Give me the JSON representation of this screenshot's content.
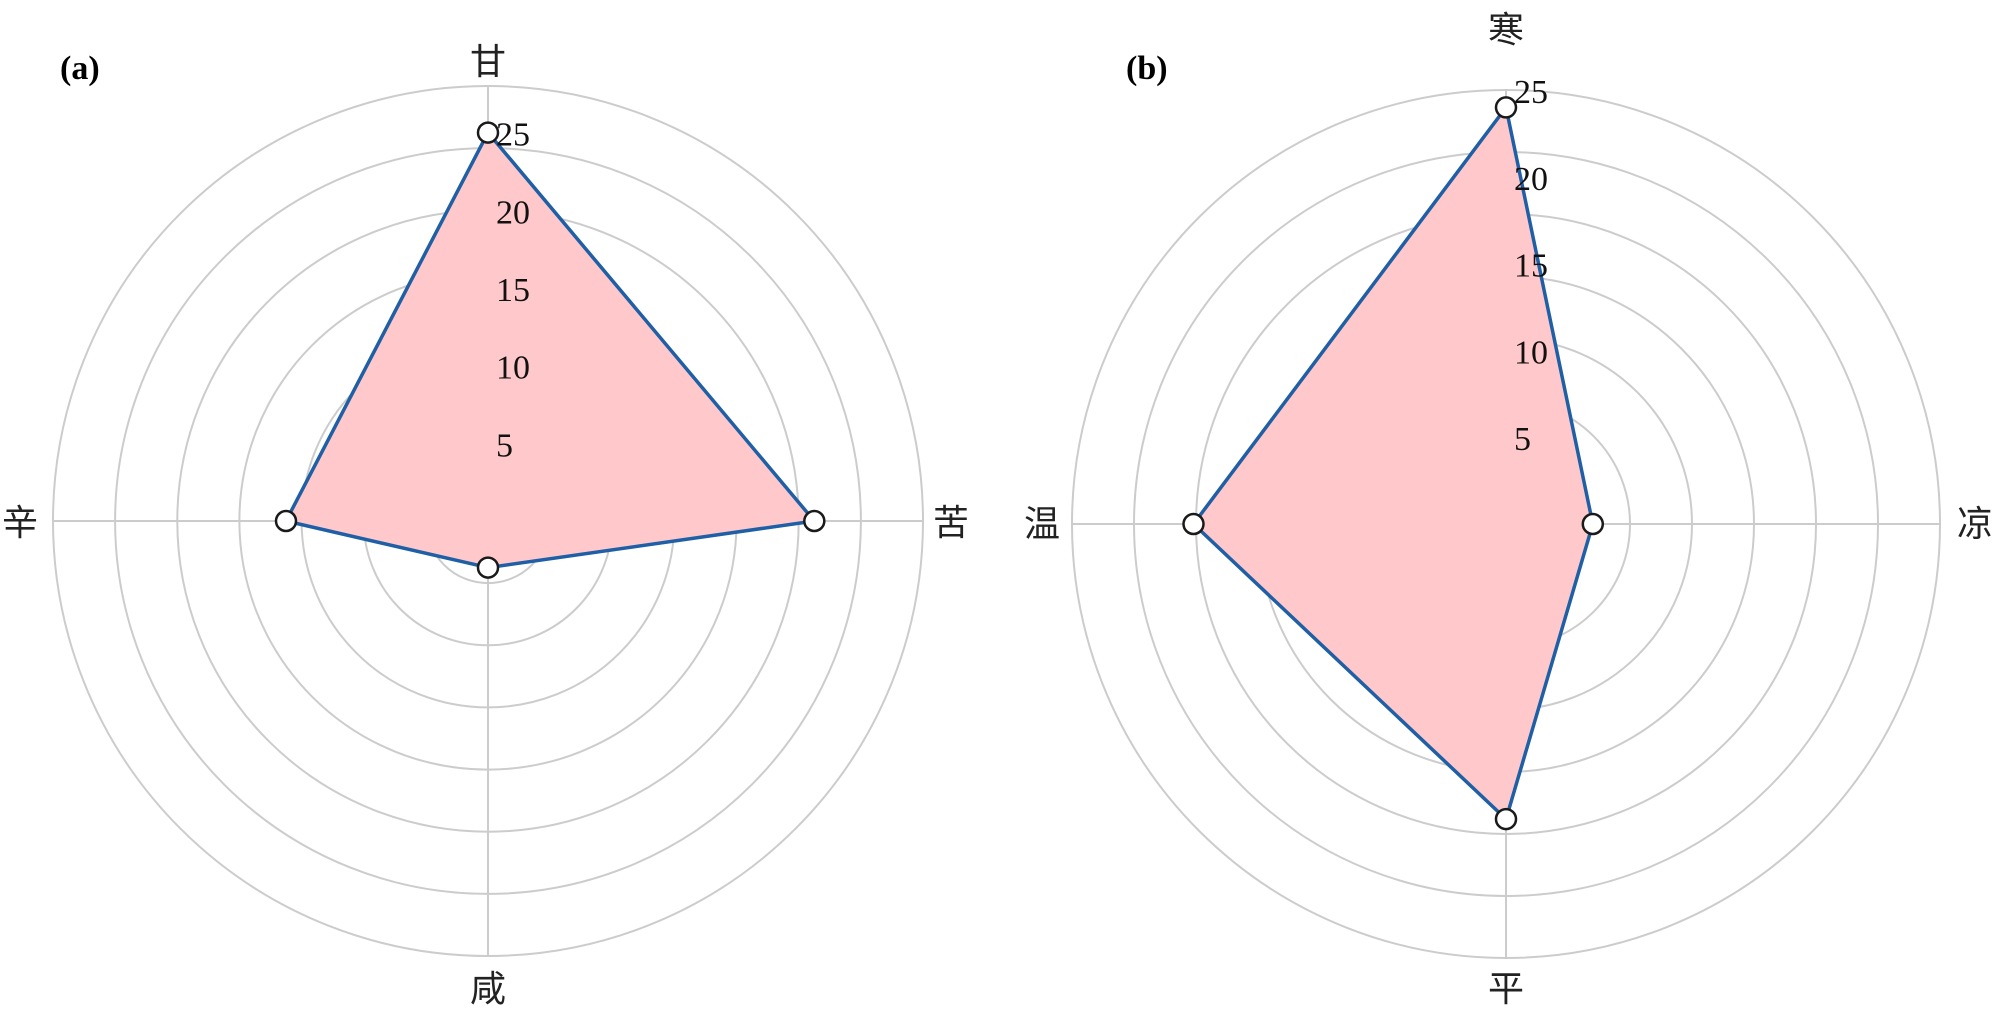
{
  "chart_data": [
    {
      "type": "radar",
      "panel": "(a)",
      "axes": [
        "甘",
        "苦",
        "咸",
        "辛"
      ],
      "values": [
        25,
        21,
        3,
        13
      ],
      "rmax": 28,
      "ticks": [
        5,
        10,
        15,
        20,
        25
      ],
      "tick_labels": [
        "5",
        "10",
        "15",
        "20",
        "25"
      ],
      "grid": true,
      "line_color": "#1f5fa6",
      "fill_color": "#ffc9cb"
    },
    {
      "type": "radar",
      "panel": "(b)",
      "axes": [
        "寒",
        "凉",
        "平",
        "温"
      ],
      "values": [
        24,
        5,
        17,
        18
      ],
      "rmax": 25,
      "ticks": [
        5,
        10,
        15,
        20,
        25
      ],
      "tick_labels": [
        "5",
        "10",
        "15",
        "20",
        "25"
      ],
      "grid": true,
      "line_color": "#1f5fa6",
      "fill_color": "#ffc9cb"
    }
  ]
}
